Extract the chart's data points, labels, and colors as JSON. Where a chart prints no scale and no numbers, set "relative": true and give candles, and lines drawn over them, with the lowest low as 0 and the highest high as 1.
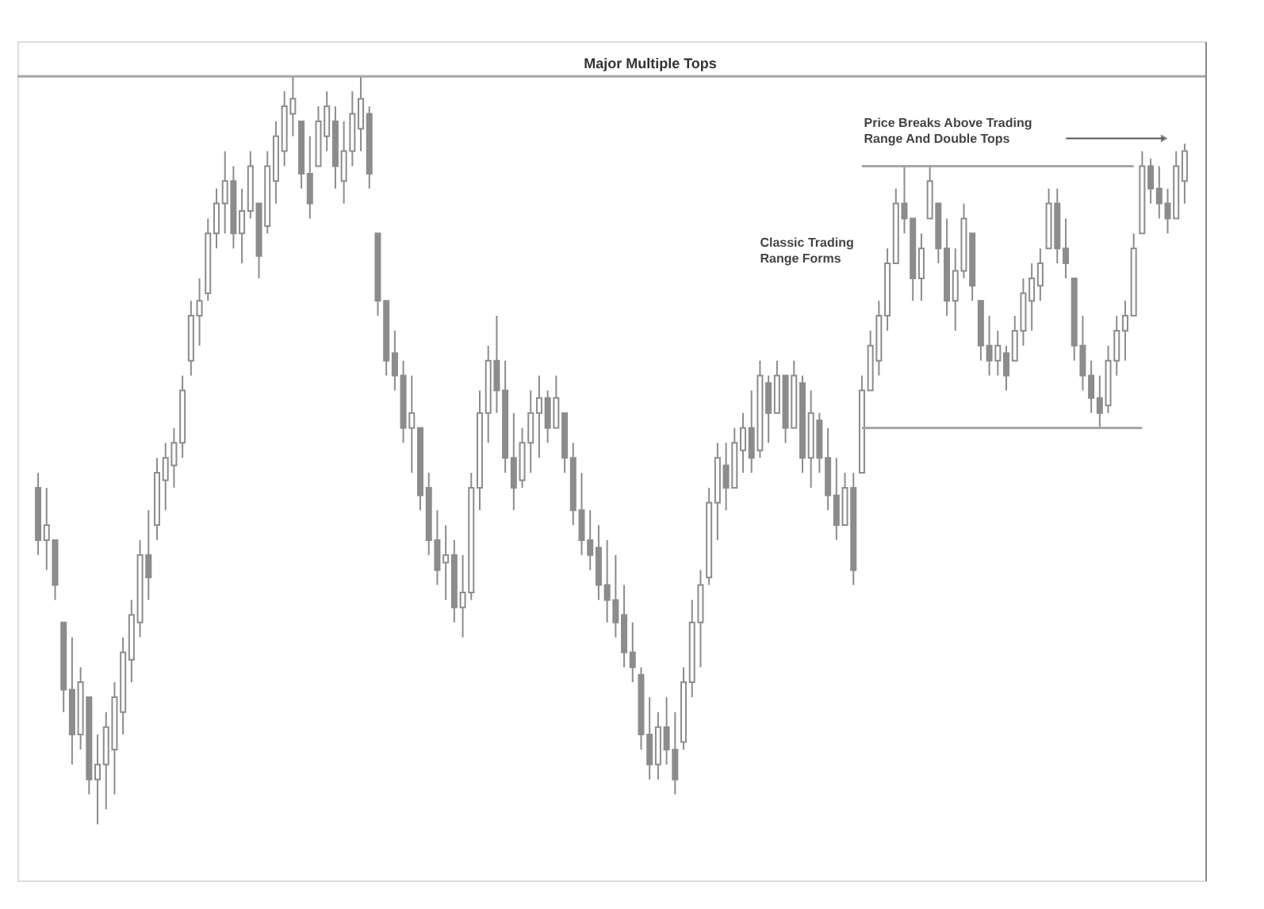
{
  "chart_data": {
    "type": "candlestick",
    "relative": true,
    "color": "#8c8c8c",
    "grid": false,
    "categories": [
      null,
      null,
      null,
      null,
      null,
      null,
      null,
      null,
      null,
      null,
      null,
      null,
      null,
      null,
      null,
      null,
      null,
      null,
      null,
      null,
      null,
      null,
      null,
      null,
      null,
      null,
      null,
      null,
      null,
      null,
      null,
      null,
      null,
      null,
      null,
      null,
      null,
      null,
      null,
      null,
      null,
      null,
      null,
      null,
      null,
      null,
      null,
      null,
      null,
      null,
      null,
      null,
      null,
      null,
      null,
      null,
      null,
      null,
      null,
      null,
      null,
      null,
      null,
      null,
      null,
      null,
      null,
      null,
      null,
      null,
      null,
      null,
      null,
      null,
      null,
      null,
      null,
      null,
      null,
      null,
      null,
      null,
      null,
      null,
      null,
      null,
      null,
      null,
      null,
      null,
      null,
      null,
      null,
      null,
      null,
      null,
      null,
      null,
      null,
      null,
      null,
      null,
      null,
      null,
      null,
      null,
      null,
      null,
      null,
      null,
      null,
      null,
      null,
      null,
      null,
      null,
      null,
      null,
      null,
      null,
      null,
      null,
      null,
      null,
      null,
      null,
      null,
      null,
      null,
      null,
      null,
      null,
      null,
      null,
      null,
      null
    ],
    "ohlc": [
      [
        0.45,
        0.47,
        0.36,
        0.38
      ],
      [
        0.38,
        0.45,
        0.34,
        0.4
      ],
      [
        0.38,
        0.38,
        0.3,
        0.32
      ],
      [
        0.27,
        0.27,
        0.15,
        0.18
      ],
      [
        0.18,
        0.25,
        0.08,
        0.12
      ],
      [
        0.12,
        0.21,
        0.1,
        0.19
      ],
      [
        0.17,
        0.17,
        0.04,
        0.06
      ],
      [
        0.06,
        0.12,
        0.0,
        0.08
      ],
      [
        0.08,
        0.15,
        0.02,
        0.13
      ],
      [
        0.1,
        0.19,
        0.04,
        0.17
      ],
      [
        0.15,
        0.25,
        0.12,
        0.23
      ],
      [
        0.22,
        0.3,
        0.19,
        0.28
      ],
      [
        0.27,
        0.38,
        0.25,
        0.36
      ],
      [
        0.36,
        0.42,
        0.3,
        0.33
      ],
      [
        0.4,
        0.49,
        0.38,
        0.47
      ],
      [
        0.46,
        0.51,
        0.42,
        0.49
      ],
      [
        0.48,
        0.53,
        0.45,
        0.51
      ],
      [
        0.51,
        0.6,
        0.49,
        0.58
      ],
      [
        0.62,
        0.7,
        0.6,
        0.68
      ],
      [
        0.68,
        0.73,
        0.64,
        0.7
      ],
      [
        0.71,
        0.81,
        0.7,
        0.79
      ],
      [
        0.79,
        0.85,
        0.77,
        0.83
      ],
      [
        0.83,
        0.9,
        0.79,
        0.86
      ],
      [
        0.86,
        0.88,
        0.77,
        0.79
      ],
      [
        0.79,
        0.85,
        0.75,
        0.82
      ],
      [
        0.82,
        0.9,
        0.81,
        0.88
      ],
      [
        0.83,
        0.83,
        0.73,
        0.76
      ],
      [
        0.8,
        0.9,
        0.79,
        0.88
      ],
      [
        0.86,
        0.94,
        0.83,
        0.92
      ],
      [
        0.9,
        0.98,
        0.88,
        0.96
      ],
      [
        0.95,
        1.0,
        0.92,
        0.97
      ],
      [
        0.94,
        0.94,
        0.85,
        0.87
      ],
      [
        0.87,
        0.92,
        0.81,
        0.83
      ],
      [
        0.88,
        0.96,
        0.88,
        0.94
      ],
      [
        0.92,
        0.98,
        0.9,
        0.96
      ],
      [
        0.94,
        0.96,
        0.85,
        0.88
      ],
      [
        0.86,
        0.94,
        0.83,
        0.9
      ],
      [
        0.9,
        0.98,
        0.88,
        0.95
      ],
      [
        0.93,
        1.0,
        0.9,
        0.97
      ],
      [
        0.95,
        0.96,
        0.85,
        0.87
      ],
      [
        0.79,
        0.79,
        0.68,
        0.7
      ],
      [
        0.7,
        0.7,
        0.6,
        0.62
      ],
      [
        0.63,
        0.66,
        0.58,
        0.6
      ],
      [
        0.6,
        0.62,
        0.51,
        0.53
      ],
      [
        0.53,
        0.6,
        0.47,
        0.55
      ],
      [
        0.53,
        0.53,
        0.42,
        0.44
      ],
      [
        0.45,
        0.47,
        0.36,
        0.38
      ],
      [
        0.38,
        0.42,
        0.32,
        0.34
      ],
      [
        0.35,
        0.4,
        0.3,
        0.36
      ],
      [
        0.36,
        0.38,
        0.27,
        0.29
      ],
      [
        0.29,
        0.36,
        0.25,
        0.31
      ],
      [
        0.31,
        0.47,
        0.3,
        0.45
      ],
      [
        0.45,
        0.58,
        0.42,
        0.55
      ],
      [
        0.55,
        0.64,
        0.51,
        0.62
      ],
      [
        0.62,
        0.68,
        0.55,
        0.58
      ],
      [
        0.58,
        0.62,
        0.47,
        0.49
      ],
      [
        0.49,
        0.55,
        0.42,
        0.45
      ],
      [
        0.46,
        0.53,
        0.45,
        0.51
      ],
      [
        0.51,
        0.58,
        0.47,
        0.55
      ],
      [
        0.55,
        0.6,
        0.49,
        0.57
      ],
      [
        0.57,
        0.58,
        0.51,
        0.53
      ],
      [
        0.53,
        0.6,
        0.53,
        0.57
      ],
      [
        0.55,
        0.55,
        0.47,
        0.49
      ],
      [
        0.49,
        0.51,
        0.4,
        0.42
      ],
      [
        0.42,
        0.47,
        0.36,
        0.38
      ],
      [
        0.38,
        0.42,
        0.34,
        0.36
      ],
      [
        0.37,
        0.4,
        0.3,
        0.32
      ],
      [
        0.32,
        0.38,
        0.27,
        0.3
      ],
      [
        0.3,
        0.36,
        0.25,
        0.27
      ],
      [
        0.28,
        0.32,
        0.21,
        0.23
      ],
      [
        0.23,
        0.27,
        0.19,
        0.21
      ],
      [
        0.2,
        0.21,
        0.1,
        0.12
      ],
      [
        0.12,
        0.17,
        0.06,
        0.08
      ],
      [
        0.08,
        0.15,
        0.06,
        0.13
      ],
      [
        0.13,
        0.17,
        0.08,
        0.1
      ],
      [
        0.1,
        0.15,
        0.04,
        0.06
      ],
      [
        0.11,
        0.21,
        0.1,
        0.19
      ],
      [
        0.19,
        0.3,
        0.17,
        0.27
      ],
      [
        0.27,
        0.34,
        0.21,
        0.32
      ],
      [
        0.33,
        0.45,
        0.32,
        0.43
      ],
      [
        0.43,
        0.51,
        0.38,
        0.49
      ],
      [
        0.48,
        0.51,
        0.42,
        0.45
      ],
      [
        0.45,
        0.53,
        0.45,
        0.51
      ],
      [
        0.5,
        0.55,
        0.47,
        0.53
      ],
      [
        0.53,
        0.58,
        0.47,
        0.49
      ],
      [
        0.5,
        0.62,
        0.49,
        0.6
      ],
      [
        0.59,
        0.6,
        0.51,
        0.55
      ],
      [
        0.55,
        0.62,
        0.55,
        0.6
      ],
      [
        0.6,
        0.6,
        0.51,
        0.53
      ],
      [
        0.53,
        0.62,
        0.53,
        0.6
      ],
      [
        0.59,
        0.6,
        0.47,
        0.49
      ],
      [
        0.49,
        0.58,
        0.45,
        0.55
      ],
      [
        0.54,
        0.55,
        0.47,
        0.49
      ],
      [
        0.49,
        0.53,
        0.42,
        0.44
      ],
      [
        0.44,
        0.49,
        0.38,
        0.4
      ],
      [
        0.4,
        0.47,
        0.4,
        0.45
      ],
      [
        0.45,
        0.47,
        0.32,
        0.34
      ],
      [
        0.47,
        0.6,
        0.47,
        0.58
      ],
      [
        0.58,
        0.66,
        0.58,
        0.64
      ],
      [
        0.62,
        0.7,
        0.6,
        0.68
      ],
      [
        0.68,
        0.77,
        0.66,
        0.75
      ],
      [
        0.75,
        0.85,
        0.75,
        0.83
      ],
      [
        0.83,
        0.88,
        0.79,
        0.81
      ],
      [
        0.81,
        0.81,
        0.7,
        0.73
      ],
      [
        0.73,
        0.79,
        0.7,
        0.77
      ],
      [
        0.81,
        0.88,
        0.81,
        0.86
      ],
      [
        0.83,
        0.83,
        0.75,
        0.77
      ],
      [
        0.77,
        0.81,
        0.68,
        0.7
      ],
      [
        0.7,
        0.77,
        0.66,
        0.74
      ],
      [
        0.74,
        0.83,
        0.73,
        0.81
      ],
      [
        0.79,
        0.79,
        0.7,
        0.72
      ],
      [
        0.7,
        0.7,
        0.62,
        0.64
      ],
      [
        0.64,
        0.68,
        0.6,
        0.62
      ],
      [
        0.62,
        0.66,
        0.6,
        0.64
      ],
      [
        0.63,
        0.64,
        0.58,
        0.6
      ],
      [
        0.62,
        0.68,
        0.62,
        0.66
      ],
      [
        0.66,
        0.73,
        0.64,
        0.71
      ],
      [
        0.7,
        0.75,
        0.66,
        0.73
      ],
      [
        0.72,
        0.77,
        0.7,
        0.75
      ],
      [
        0.77,
        0.85,
        0.77,
        0.83
      ],
      [
        0.83,
        0.85,
        0.75,
        0.77
      ],
      [
        0.77,
        0.81,
        0.73,
        0.75
      ],
      [
        0.73,
        0.73,
        0.62,
        0.64
      ],
      [
        0.64,
        0.68,
        0.58,
        0.6
      ],
      [
        0.6,
        0.62,
        0.55,
        0.57
      ],
      [
        0.57,
        0.6,
        0.53,
        0.55
      ],
      [
        0.56,
        0.64,
        0.55,
        0.62
      ],
      [
        0.62,
        0.68,
        0.6,
        0.66
      ],
      [
        0.66,
        0.7,
        0.62,
        0.68
      ],
      [
        0.68,
        0.79,
        0.68,
        0.77
      ],
      [
        0.79,
        0.9,
        0.79,
        0.88
      ],
      [
        0.88,
        0.89,
        0.83,
        0.85
      ],
      [
        0.85,
        0.88,
        0.81,
        0.83
      ],
      [
        0.83,
        0.85,
        0.79,
        0.81
      ],
      [
        0.81,
        0.9,
        0.81,
        0.88
      ],
      [
        0.86,
        0.91,
        0.83,
        0.9
      ]
    ],
    "series": [
      {
        "type": "line",
        "color": "#a6a6a6",
        "values": [
          null,
          null,
          null,
          null,
          null,
          null,
          null,
          null,
          null,
          null,
          null,
          null,
          null,
          null,
          null,
          null,
          null,
          null,
          null,
          null,
          null,
          null,
          null,
          null,
          null,
          null,
          null,
          null,
          null,
          null,
          null,
          null,
          null,
          null,
          null,
          null,
          null,
          null,
          null,
          null,
          null,
          null,
          null,
          null,
          null,
          null,
          null,
          null,
          null,
          null,
          null,
          null,
          null,
          null,
          null,
          null,
          null,
          null,
          null,
          null,
          null,
          null,
          null,
          null,
          null,
          null,
          null,
          null,
          null,
          null,
          null,
          null,
          null,
          null,
          null,
          null,
          null,
          null,
          null,
          null,
          null,
          null,
          null,
          null,
          null,
          null,
          null,
          null,
          null,
          null,
          null,
          null,
          null,
          null,
          null,
          null,
          null,
          0.88,
          0.88,
          0.88,
          0.88,
          0.88,
          0.88,
          0.88,
          0.88,
          0.88,
          0.88,
          0.88,
          0.88,
          0.88,
          0.88,
          0.88,
          0.88,
          0.88,
          0.88,
          0.88,
          0.88,
          0.88,
          0.88,
          0.88,
          0.88,
          0.88,
          0.88,
          0.88,
          0.88,
          0.88,
          0.88,
          0.88,
          0.88,
          0.88,
          null,
          null,
          null,
          null,
          null,
          null
        ]
      },
      {
        "type": "line",
        "color": "#a6a6a6",
        "values": [
          null,
          null,
          null,
          null,
          null,
          null,
          null,
          null,
          null,
          null,
          null,
          null,
          null,
          null,
          null,
          null,
          null,
          null,
          null,
          null,
          null,
          null,
          null,
          null,
          null,
          null,
          null,
          null,
          null,
          null,
          null,
          null,
          null,
          null,
          null,
          null,
          null,
          null,
          null,
          null,
          null,
          null,
          null,
          null,
          null,
          null,
          null,
          null,
          null,
          null,
          null,
          null,
          null,
          null,
          null,
          null,
          null,
          null,
          null,
          null,
          null,
          null,
          null,
          null,
          null,
          null,
          null,
          null,
          null,
          null,
          null,
          null,
          null,
          null,
          null,
          null,
          null,
          null,
          null,
          null,
          null,
          null,
          null,
          null,
          null,
          null,
          null,
          null,
          null,
          null,
          null,
          null,
          null,
          null,
          null,
          null,
          null,
          0.53,
          0.53,
          0.53,
          0.53,
          0.53,
          0.53,
          0.53,
          0.53,
          0.53,
          0.53,
          0.53,
          0.53,
          0.53,
          0.53,
          0.53,
          0.53,
          0.53,
          0.53,
          0.53,
          0.53,
          0.53,
          0.53,
          0.53,
          0.53,
          0.53,
          0.53,
          0.53,
          0.53,
          0.53,
          0.53,
          0.53,
          0.53,
          0.53,
          0.53,
          null,
          null,
          null,
          null,
          null
        ]
      }
    ],
    "ref_lines": [
      {
        "axis": "y",
        "value": 1.0,
        "label": "Major Multiple Tops",
        "color": "#a6a6a6"
      }
    ],
    "annotations": [
      "Classic Trading Range Forms",
      "Price Breaks Above Trading Range And Double Tops"
    ]
  }
}
